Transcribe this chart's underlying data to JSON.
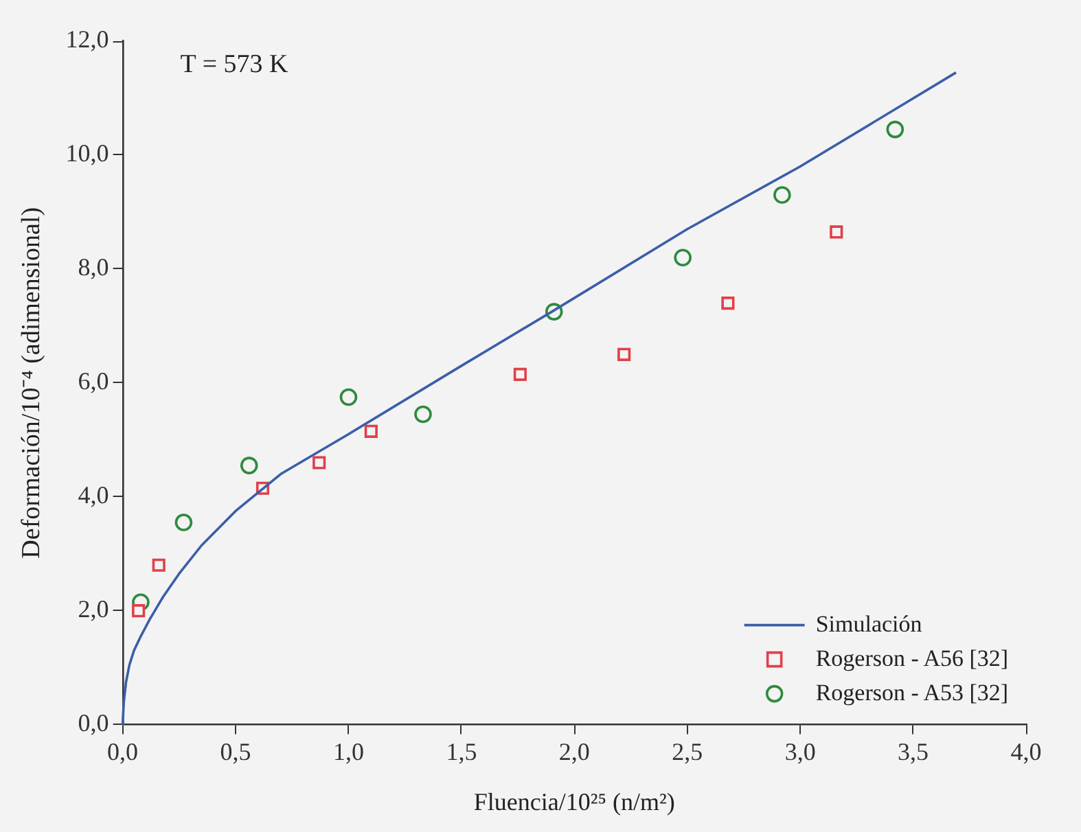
{
  "chart_data": {
    "type": "scatter",
    "xlabel": "Fluencia/10²⁵ (n/m²)",
    "ylabel": "Deformación/10⁻⁴ (adimensional)",
    "annotations": [
      "T = 573 K"
    ],
    "xlim": [
      0,
      4
    ],
    "xticks": [
      {
        "value": 0,
        "label": "0,0"
      },
      {
        "value": 0.5,
        "label": "0,5"
      },
      {
        "value": 1,
        "label": "1,0"
      },
      {
        "value": 1.5,
        "label": "1,5"
      },
      {
        "value": 2,
        "label": "2,0"
      },
      {
        "value": 2.5,
        "label": "2,5"
      },
      {
        "value": 3,
        "label": "3,0"
      },
      {
        "value": 3.5,
        "label": "3,5"
      },
      {
        "value": 4,
        "label": "4,0"
      }
    ],
    "ylim": [
      0,
      12
    ],
    "yticks": [
      {
        "value": 0,
        "label": "0,0"
      },
      {
        "value": 2,
        "label": "2,0"
      },
      {
        "value": 4,
        "label": "4,0"
      },
      {
        "value": 6,
        "label": "6,0"
      },
      {
        "value": 8,
        "label": "8,0"
      },
      {
        "value": 10,
        "label": "10,0"
      },
      {
        "value": 12,
        "label": "12,0"
      }
    ],
    "grid": false,
    "legend": "bottom right",
    "series": [
      {
        "name": "Simulación",
        "type": "line",
        "marker": "none",
        "line_style": "solid",
        "color": "#3a5fa8",
        "x": [
          0,
          0.005,
          0.015,
          0.03,
          0.05,
          0.08,
          0.12,
          0.18,
          0.25,
          0.35,
          0.5,
          0.7,
          1.0,
          1.5,
          1.9,
          2.5,
          3.0,
          3.69
        ],
        "values": [
          0,
          0.4,
          0.75,
          1.05,
          1.3,
          1.55,
          1.85,
          2.25,
          2.65,
          3.15,
          3.75,
          4.4,
          5.1,
          6.3,
          7.25,
          8.7,
          9.8,
          11.45
        ]
      },
      {
        "name": "Rogerson - A56 [32]",
        "type": "scatter",
        "marker": "square",
        "color": "#e0404a",
        "x": [
          0.07,
          0.16,
          0.62,
          0.87,
          1.1,
          1.76,
          2.22,
          2.68,
          3.16
        ],
        "values": [
          2.0,
          2.8,
          4.15,
          4.6,
          5.15,
          6.15,
          6.5,
          7.4,
          8.65
        ]
      },
      {
        "name": "Rogerson - A53 [32]",
        "type": "scatter",
        "marker": "circle",
        "color": "#2e8a3e",
        "x": [
          0.08,
          0.27,
          0.56,
          1.0,
          1.33,
          1.91,
          2.48,
          2.92,
          3.42
        ],
        "values": [
          2.15,
          3.55,
          4.55,
          5.75,
          5.45,
          7.25,
          8.2,
          9.3,
          10.45
        ]
      }
    ]
  }
}
